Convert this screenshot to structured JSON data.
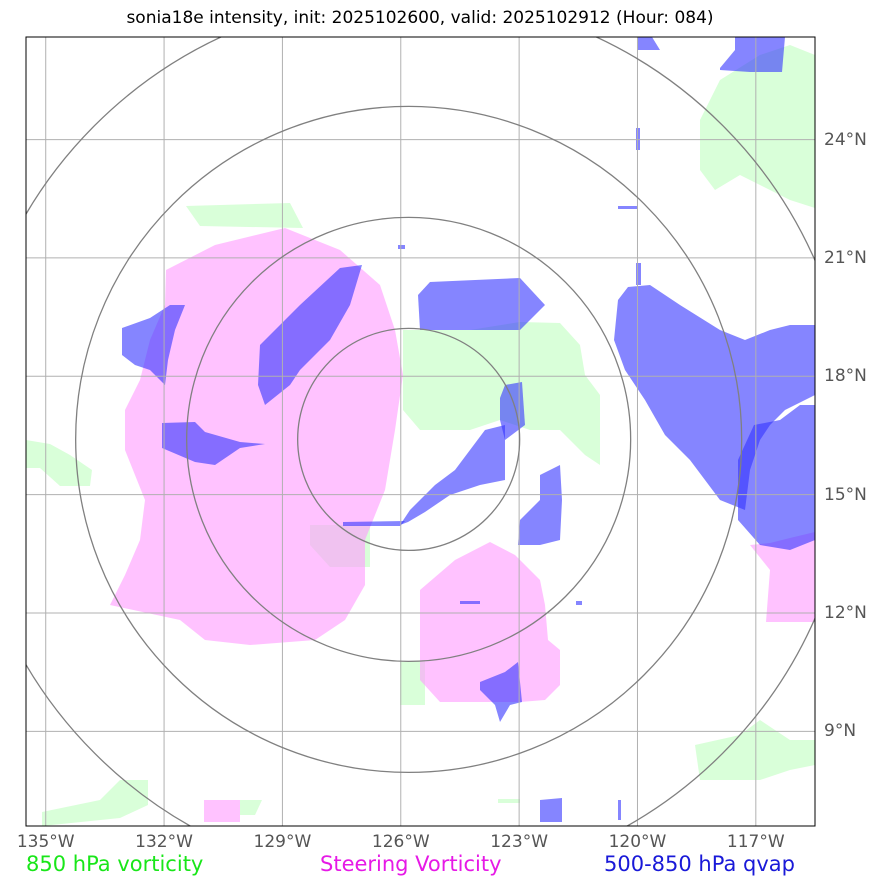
{
  "title": "sonia18e intensity, init: 2025102600, valid: 2025102912 (Hour: 084)",
  "map": {
    "lon_ticks": [
      {
        "value": -135,
        "label": "135°W"
      },
      {
        "value": -132,
        "label": "132°W"
      },
      {
        "value": -129,
        "label": "129°W"
      },
      {
        "value": -126,
        "label": "126°W"
      },
      {
        "value": -123,
        "label": "123°W"
      },
      {
        "value": -120,
        "label": "120°W"
      },
      {
        "value": -117,
        "label": "117°W"
      }
    ],
    "lat_ticks": [
      {
        "value": 9,
        "label": "9°N"
      },
      {
        "value": 12,
        "label": "12°N"
      },
      {
        "value": 15,
        "label": "15°N"
      },
      {
        "value": 18,
        "label": "18°N"
      },
      {
        "value": 21,
        "label": "21°N"
      },
      {
        "value": 24,
        "label": "24°N"
      }
    ],
    "extent": {
      "lon_min": -135.5,
      "lon_max": -115.5,
      "lat_min": 6.6,
      "lat_max": 26.6
    },
    "storm_center": {
      "lon": -125.8,
      "lat": 16.4
    },
    "range_rings": 4,
    "colors": {
      "vort850": "#ccffcc",
      "steering": "#ff99ff",
      "qvap": "#3333ff",
      "rings": "#808080",
      "grid": "#b0b0b0"
    }
  },
  "legend": {
    "vort850": "850 hPa vorticity",
    "steering": "Steering Vorticity",
    "qvap": "500-850 hPa qvap"
  }
}
